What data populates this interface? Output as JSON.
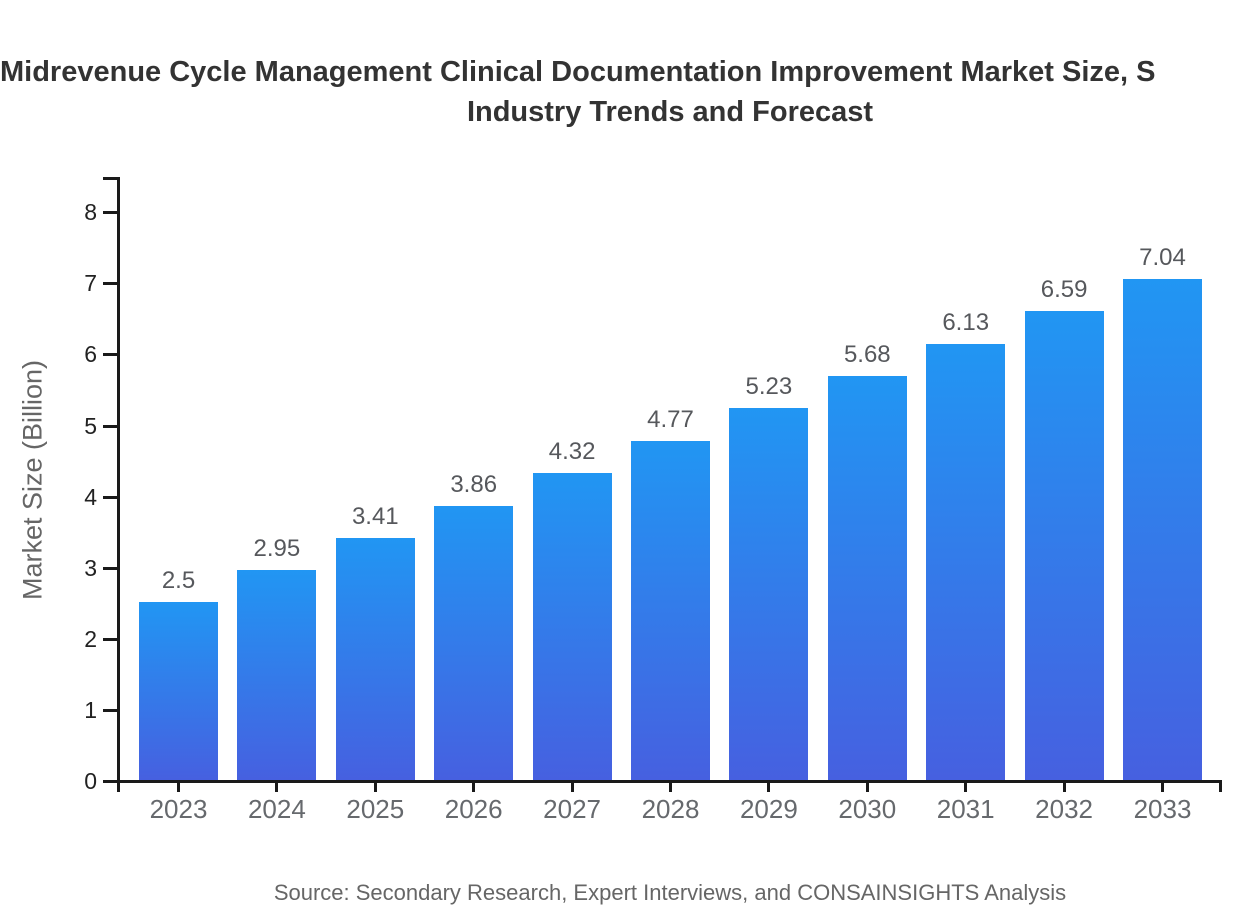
{
  "title": {
    "line1": "Midrevenue Cycle Management Clinical Documentation Improvement Market Size, S",
    "line2": "Industry Trends and Forecast"
  },
  "source_line": "Source: Secondary Research, Expert Interviews, and CONSAINSIGHTS Analysis",
  "colors": {
    "background": "#ffffff",
    "title_text": "#333333",
    "axis": "#1a1a1a",
    "y_tick_label": "#222222",
    "category_label": "#66696d",
    "value_label": "#56585c",
    "axis_title": "#666666",
    "source_text": "#666666",
    "bar_gradient_top": "#2196f3",
    "bar_gradient_bottom": "#4660e0"
  },
  "chart_data": {
    "type": "bar",
    "title": "Midrevenue Cycle Management Clinical Documentation Improvement Market Size, S / Industry Trends and Forecast",
    "categories": [
      "2023",
      "2024",
      "2025",
      "2026",
      "2027",
      "2028",
      "2029",
      "2030",
      "2031",
      "2032",
      "2033"
    ],
    "values": [
      2.5,
      2.95,
      3.41,
      3.86,
      4.32,
      4.77,
      5.23,
      5.68,
      6.13,
      6.59,
      7.04
    ],
    "value_labels": [
      "2.5",
      "2.95",
      "3.41",
      "3.86",
      "4.32",
      "4.77",
      "5.23",
      "5.68",
      "6.13",
      "6.59",
      "7.04"
    ],
    "xlabel": "",
    "ylabel": "Market Size (Billion)",
    "ylim": [
      0,
      8.5
    ],
    "yticks": [
      0,
      1,
      2,
      3,
      4,
      5,
      6,
      7,
      8
    ],
    "grid": false,
    "legend": false,
    "bar_labels_shown": true
  }
}
